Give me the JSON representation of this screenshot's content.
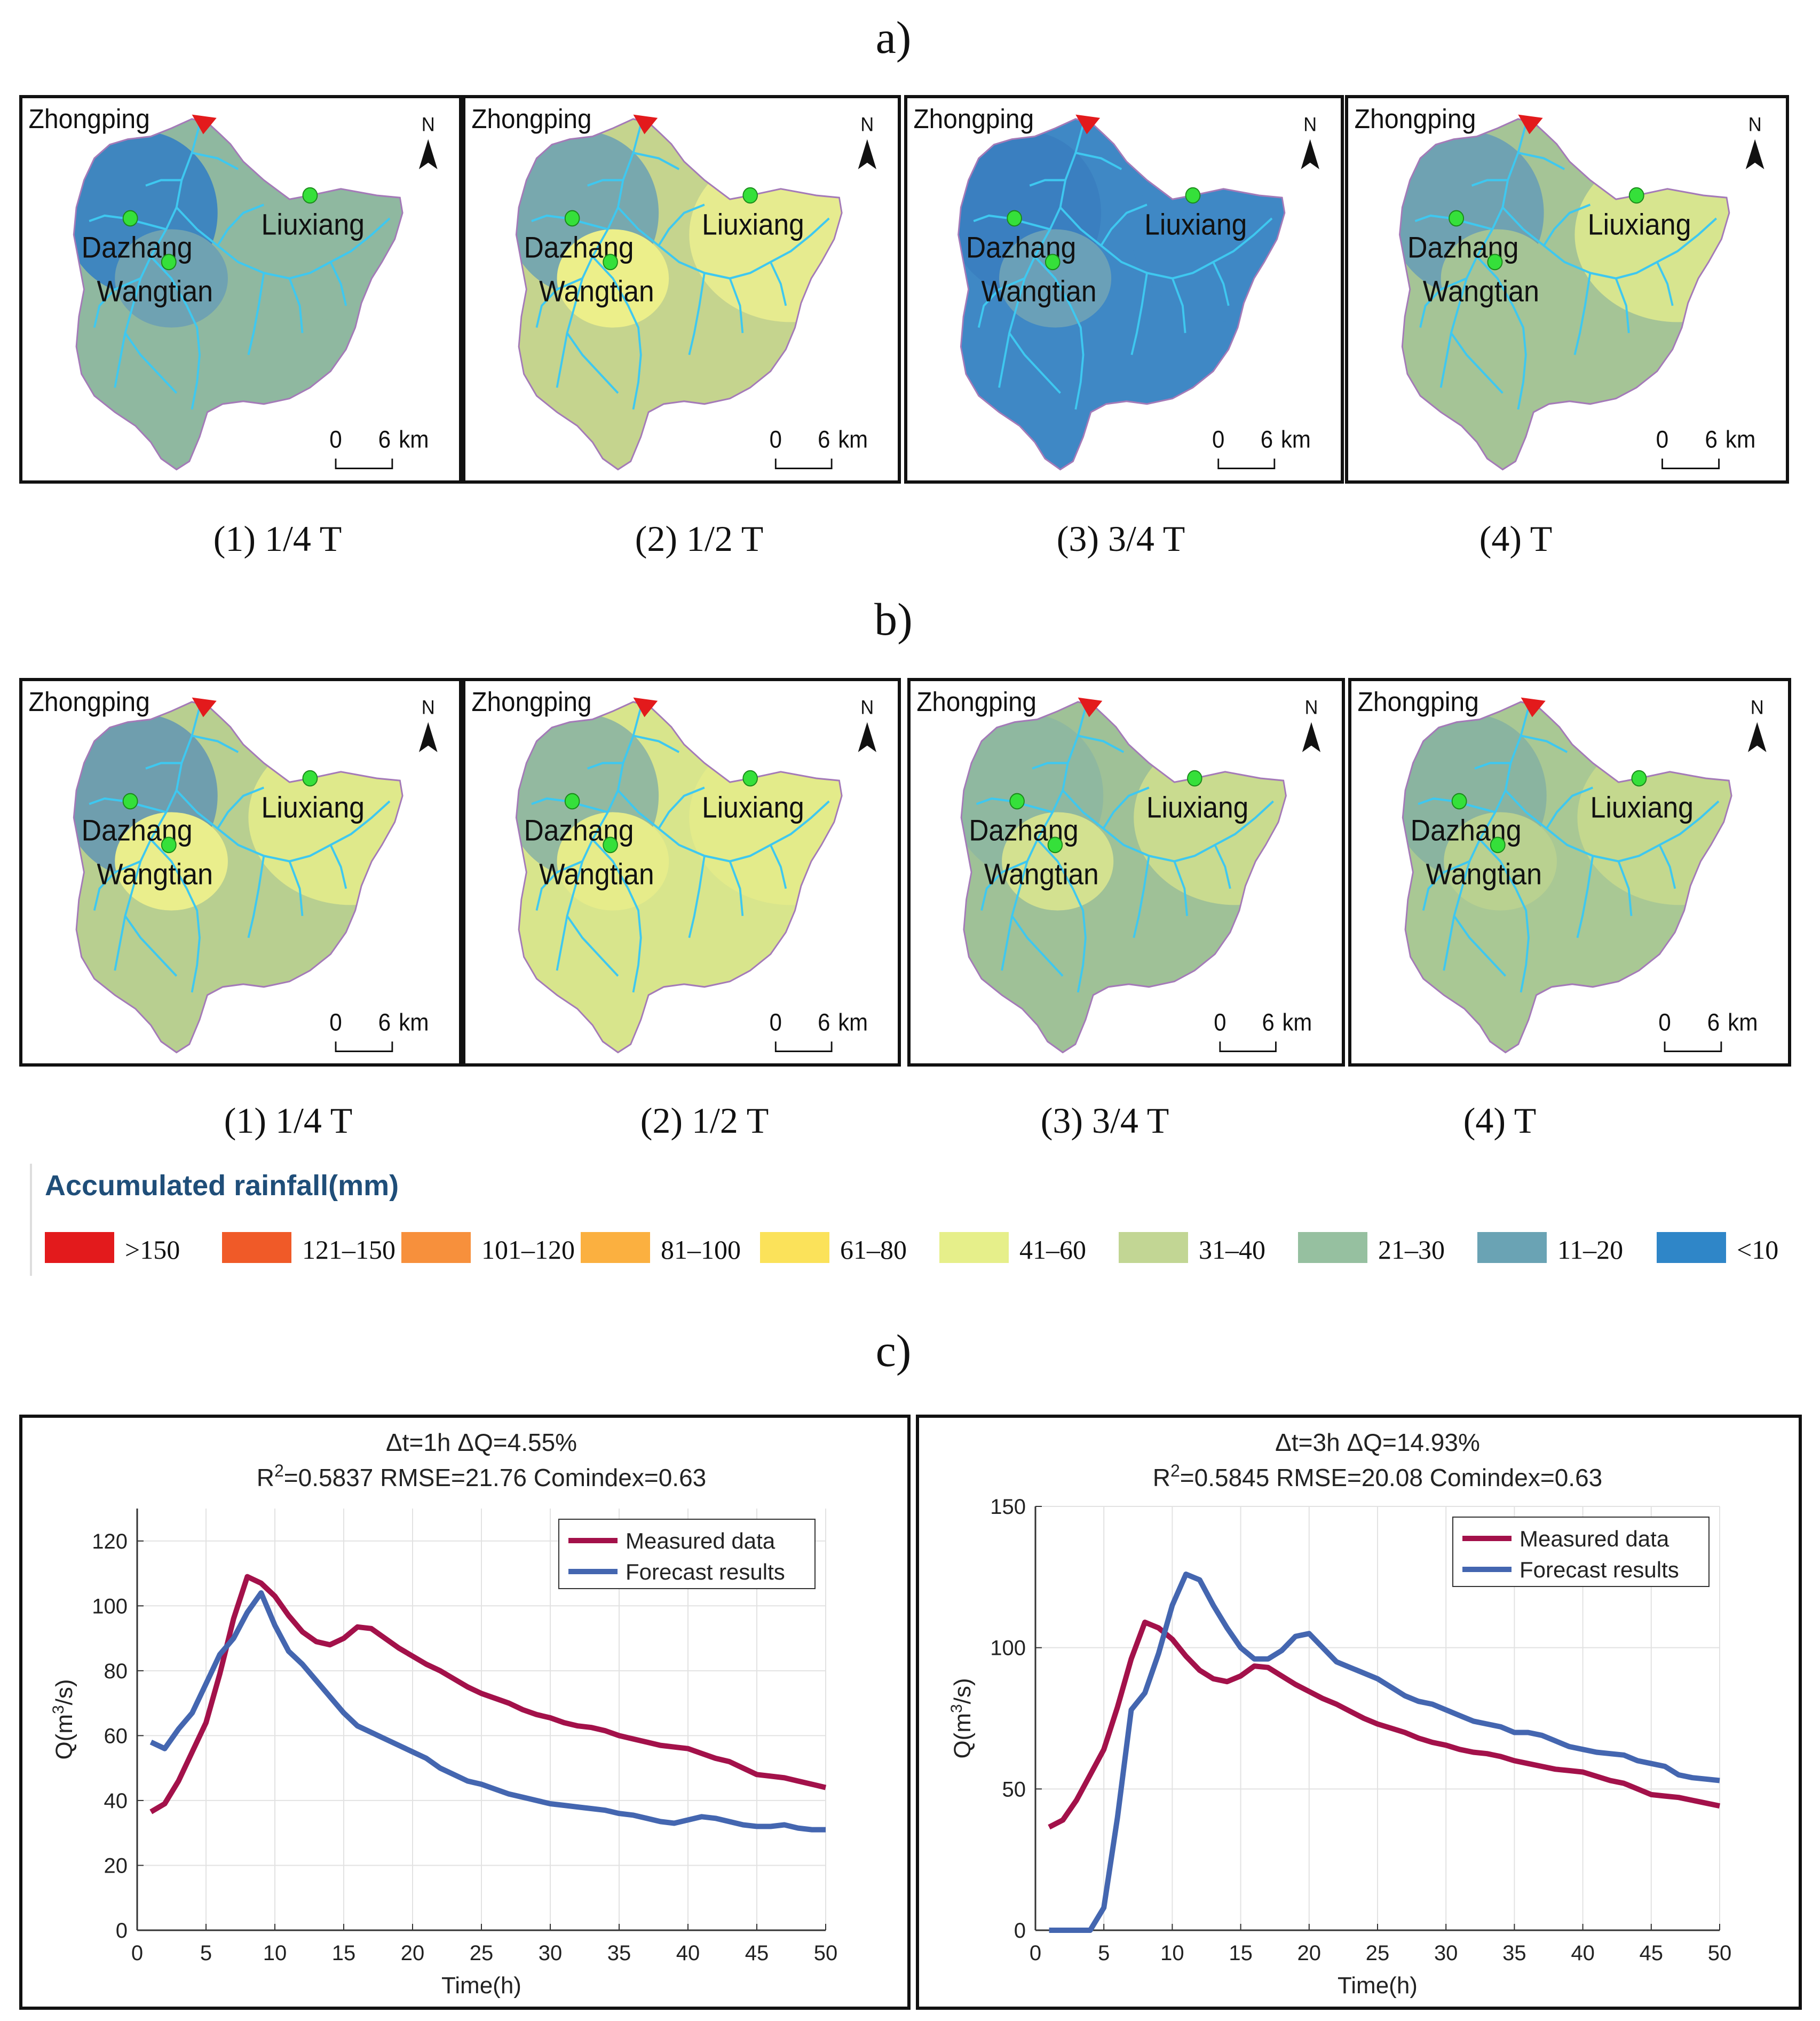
{
  "section_labels": {
    "a": "a)",
    "b": "b)",
    "c": "c)"
  },
  "map": {
    "outlet": "Zhongping",
    "stations": [
      "Dazhang",
      "Liuxiang",
      "Wangtian"
    ],
    "north": "N",
    "scale_start": "0",
    "scale_end": "6",
    "scale_unit": "km"
  },
  "row_a": {
    "captions": [
      "(1) 1/4 T",
      "(2) 1/2 T",
      "(3) 3/4 T",
      "(4) T"
    ],
    "panel_fills": [
      {
        "base": "#8fb8a0",
        "dazhang": "#3f86bf",
        "liuxiang": "#8fb8a0",
        "wangtian": "#6fa2b2"
      },
      {
        "base": "#c5d48e",
        "dazhang": "#78a8ae",
        "liuxiang": "#e6eb8f",
        "wangtian": "#ecef8a"
      },
      {
        "base": "#3f88c5",
        "dazhang": "#3a7fc0",
        "liuxiang": "#3f88c5",
        "wangtian": "#6aa0b8"
      },
      {
        "base": "#a5c496",
        "dazhang": "#6fa2b2",
        "liuxiang": "#d7e58f",
        "wangtian": "#a5c496"
      }
    ]
  },
  "row_b": {
    "captions": [
      "(1) 1/4 T",
      "(2) 1/2 T",
      "(3) 3/4 T",
      "(4) T"
    ],
    "panel_fills": [
      {
        "base": "#b8cf90",
        "dazhang": "#6f9eae",
        "liuxiang": "#dfe98b",
        "wangtian": "#eaee8c"
      },
      {
        "base": "#d8e58c",
        "dazhang": "#93b9a0",
        "liuxiang": "#e3eb8a",
        "wangtian": "#e6ec8a"
      },
      {
        "base": "#9fc197",
        "dazhang": "#8fb8a0",
        "liuxiang": "#c9db8f",
        "wangtian": "#d3e190"
      },
      {
        "base": "#a9c894",
        "dazhang": "#8ab4a0",
        "liuxiang": "#c4d88e",
        "wangtian": "#b9d190"
      }
    ]
  },
  "legend": {
    "title": "Accumulated rainfall(mm)",
    "items": [
      {
        "label": ">150",
        "color": "#e31a1c"
      },
      {
        "label": "121–150",
        "color": "#f05a28"
      },
      {
        "label": "101–120",
        "color": "#f7903c"
      },
      {
        "label": "81–100",
        "color": "#fbb040"
      },
      {
        "label": "61–80",
        "color": "#fbe25a"
      },
      {
        "label": "41–60",
        "color": "#e6ef8a"
      },
      {
        "label": "31–40",
        "color": "#c2d694"
      },
      {
        "label": "21–30",
        "color": "#96c0a0"
      },
      {
        "label": "11–20",
        "color": "#6aa3b4"
      },
      {
        "label": "<10",
        "color": "#2f86c8"
      }
    ]
  },
  "chart_data": [
    {
      "type": "line",
      "title_line1": "Δt=1h  ΔQ=4.55%",
      "title_line2_prefix": "R",
      "title_line2_sup": "2",
      "title_line2_rest": "=0.5837  RMSE=21.76  Comindex=0.63",
      "xlabel": "Time(h)",
      "ylabel_pre": "Q(m",
      "ylabel_sup": "3",
      "ylabel_post": "/s)",
      "xlim": [
        0,
        50
      ],
      "ylim": [
        0,
        130
      ],
      "xticks": [
        0,
        5,
        10,
        15,
        20,
        25,
        30,
        35,
        40,
        45,
        50
      ],
      "yticks": [
        0,
        20,
        40,
        60,
        80,
        100,
        120
      ],
      "x": [
        1,
        2,
        3,
        4,
        5,
        6,
        7,
        8,
        9,
        10,
        11,
        12,
        13,
        14,
        15,
        16,
        17,
        18,
        19,
        20,
        21,
        22,
        23,
        24,
        25,
        26,
        27,
        28,
        29,
        30,
        31,
        32,
        33,
        34,
        35,
        36,
        37,
        38,
        39,
        40,
        41,
        42,
        43,
        44,
        45,
        46,
        47,
        48,
        49,
        50
      ],
      "series": [
        {
          "name": "Measured data",
          "color": "#a3114a",
          "values": [
            36.5,
            39,
            46,
            55,
            64,
            79,
            96,
            109,
            107,
            103,
            97,
            92,
            89,
            88,
            90,
            93.5,
            93,
            90,
            87,
            84.5,
            82,
            80,
            77.5,
            75,
            73,
            71.5,
            70,
            68,
            66.5,
            65.5,
            64,
            63,
            62.5,
            61.5,
            60,
            59,
            58,
            57,
            56.5,
            56,
            54.5,
            53,
            52,
            50,
            48,
            47.5,
            47,
            46,
            45,
            44
          ]
        },
        {
          "name": "Forecast results",
          "color": "#4466b0",
          "values": [
            58,
            56,
            62,
            67,
            76,
            85,
            90,
            98,
            104,
            94,
            86,
            82,
            77,
            72,
            67,
            63,
            61,
            59,
            57,
            55,
            53,
            50,
            48,
            46,
            45,
            43.5,
            42,
            41,
            40,
            39,
            38.5,
            38,
            37.5,
            37,
            36,
            35.5,
            34.5,
            33.5,
            33,
            34,
            35,
            34.5,
            33.5,
            32.5,
            32,
            32,
            32.5,
            31.5,
            31,
            31
          ]
        }
      ]
    },
    {
      "type": "line",
      "title_line1": "Δt=3h  ΔQ=14.93%",
      "title_line2_prefix": "R",
      "title_line2_sup": "2",
      "title_line2_rest": "=0.5845  RMSE=20.08  Comindex=0.63",
      "xlabel": "Time(h)",
      "ylabel_pre": "Q(m",
      "ylabel_sup": "3",
      "ylabel_post": "/s)",
      "xlim": [
        0,
        50
      ],
      "ylim": [
        0,
        150
      ],
      "xticks": [
        0,
        5,
        10,
        15,
        20,
        25,
        30,
        35,
        40,
        45,
        50
      ],
      "yticks": [
        0,
        50,
        100,
        150
      ],
      "x": [
        1,
        2,
        3,
        4,
        5,
        6,
        7,
        8,
        9,
        10,
        11,
        12,
        13,
        14,
        15,
        16,
        17,
        18,
        19,
        20,
        21,
        22,
        23,
        24,
        25,
        26,
        27,
        28,
        29,
        30,
        31,
        32,
        33,
        34,
        35,
        36,
        37,
        38,
        39,
        40,
        41,
        42,
        43,
        44,
        45,
        46,
        47,
        48,
        49,
        50
      ],
      "series": [
        {
          "name": "Measured data",
          "color": "#a3114a",
          "values": [
            36.5,
            39,
            46,
            55,
            64,
            79,
            96,
            109,
            107,
            103,
            97,
            92,
            89,
            88,
            90,
            93.5,
            93,
            90,
            87,
            84.5,
            82,
            80,
            77.5,
            75,
            73,
            71.5,
            70,
            68,
            66.5,
            65.5,
            64,
            63,
            62.5,
            61.5,
            60,
            59,
            58,
            57,
            56.5,
            56,
            54.5,
            53,
            52,
            50,
            48,
            47.5,
            47,
            46,
            45,
            44
          ]
        },
        {
          "name": "Forecast results",
          "color": "#4466b0",
          "values": [
            0,
            0,
            0,
            0,
            8,
            40,
            78,
            84,
            98,
            115,
            126,
            124,
            115,
            107,
            100,
            96,
            96,
            99,
            104,
            105,
            100,
            95,
            93,
            91,
            89,
            86,
            83,
            81,
            80,
            78,
            76,
            74,
            73,
            72,
            70,
            70,
            69,
            67,
            65,
            64,
            63,
            62.5,
            62,
            60,
            59,
            58,
            55,
            54,
            53.5,
            53
          ]
        }
      ]
    }
  ]
}
